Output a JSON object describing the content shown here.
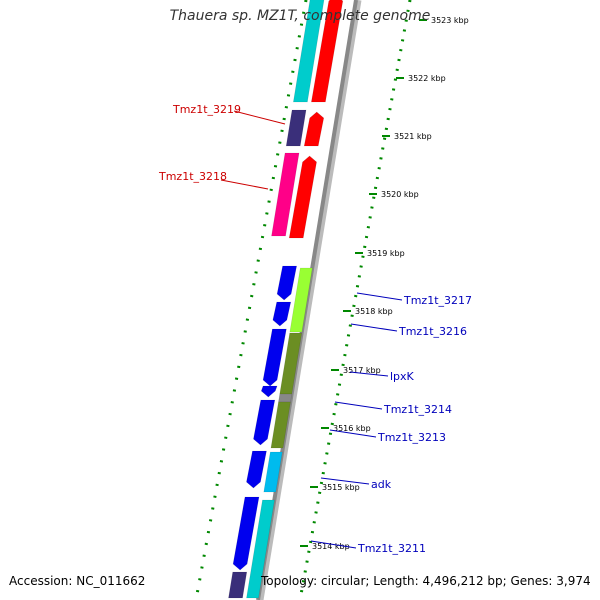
{
  "title": "Thauera sp. MZ1T, complete genome",
  "footer": {
    "accession": "Accession: NC_011662",
    "topology": "Topology: circular; Length: 4,496,212 bp; Genes: 3,974"
  },
  "ruler_ticks": [
    "3523 kbp",
    "3522 kbp",
    "3521 kbp",
    "3520 kbp",
    "3519 kbp",
    "3518 kbp",
    "3517 kbp",
    "3516 kbp",
    "3515 kbp",
    "3514 kbp"
  ],
  "gene_labels": [
    {
      "name": "Tmz1t_3219",
      "side": "left",
      "color": "#cc0000"
    },
    {
      "name": "Tmz1t_3218",
      "side": "left",
      "color": "#cc0000"
    },
    {
      "name": "Tmz1t_3217",
      "side": "right",
      "color": "#0000bb"
    },
    {
      "name": "Tmz1t_3216",
      "side": "right",
      "color": "#0000bb"
    },
    {
      "name": "lpxK",
      "side": "right",
      "color": "#0000bb"
    },
    {
      "name": "Tmz1t_3214",
      "side": "right",
      "color": "#0000bb"
    },
    {
      "name": "Tmz1t_3213",
      "side": "right",
      "color": "#0000bb"
    },
    {
      "name": "adk",
      "side": "right",
      "color": "#0000bb"
    },
    {
      "name": "Tmz1t_3211",
      "side": "right",
      "color": "#0000bb"
    }
  ],
  "colors": {
    "forward_strand": "#ff0000",
    "reverse_strand": "#0000ee",
    "backbone": "#888888",
    "ruler": "#008800",
    "cyan": "#00cccc",
    "magenta": "#ff0088",
    "navy": "#3a2f7a",
    "lime": "#99ff33",
    "olive": "#6b8e23"
  }
}
